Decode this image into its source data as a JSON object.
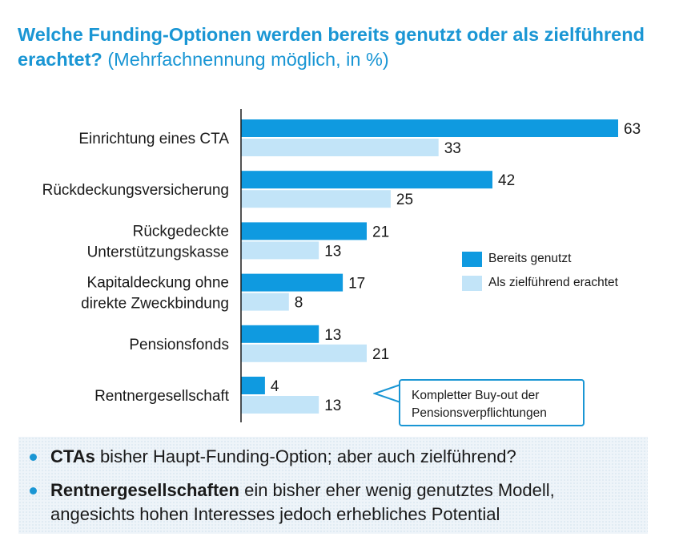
{
  "title": {
    "bold": "Welche Funding-Optionen werden bereits genutzt oder als zielführend erachtet?",
    "subtitle": "(Mehrfachnennung möglich, in %)"
  },
  "chart_data": {
    "type": "bar",
    "orientation": "horizontal",
    "categories": [
      [
        "Einrichtung eines CTA"
      ],
      [
        "Rückdeckungsversicherung"
      ],
      [
        "Rückgedeckte",
        "Unterstützungskasse"
      ],
      [
        "Kapitaldeckung ohne",
        "direkte Zweckbindung"
      ],
      [
        "Pensionsfonds"
      ],
      [
        "Rentnergesellschaft"
      ]
    ],
    "series": [
      {
        "name": "Bereits genutzt",
        "color": "#0f9ae0",
        "values": [
          63,
          42,
          21,
          17,
          13,
          4
        ]
      },
      {
        "name": "Als zielführend erachtet",
        "color": "#c2e4f8",
        "values": [
          33,
          25,
          13,
          8,
          21,
          13
        ]
      }
    ],
    "xlim": [
      0,
      63
    ],
    "legend_position": "right"
  },
  "legend": {
    "items": [
      {
        "label": "Bereits genutzt",
        "color": "#0f9ae0"
      },
      {
        "label": "Als zielführend erachtet",
        "color": "#c2e4f8"
      }
    ]
  },
  "callout": {
    "line1": "Kompletter Buy-out der",
    "line2": "Pensionsverpflichtungen"
  },
  "notes": [
    {
      "bold": "CTAs",
      "rest": " bisher Haupt-Funding-Option; aber auch zielführend?"
    },
    {
      "bold": "Rentnergesellschaften",
      "rest": " ein bisher eher wenig genutztes Modell,",
      "line2": "angesichts hohen Interesses jedoch erhebliches Potential"
    }
  ]
}
